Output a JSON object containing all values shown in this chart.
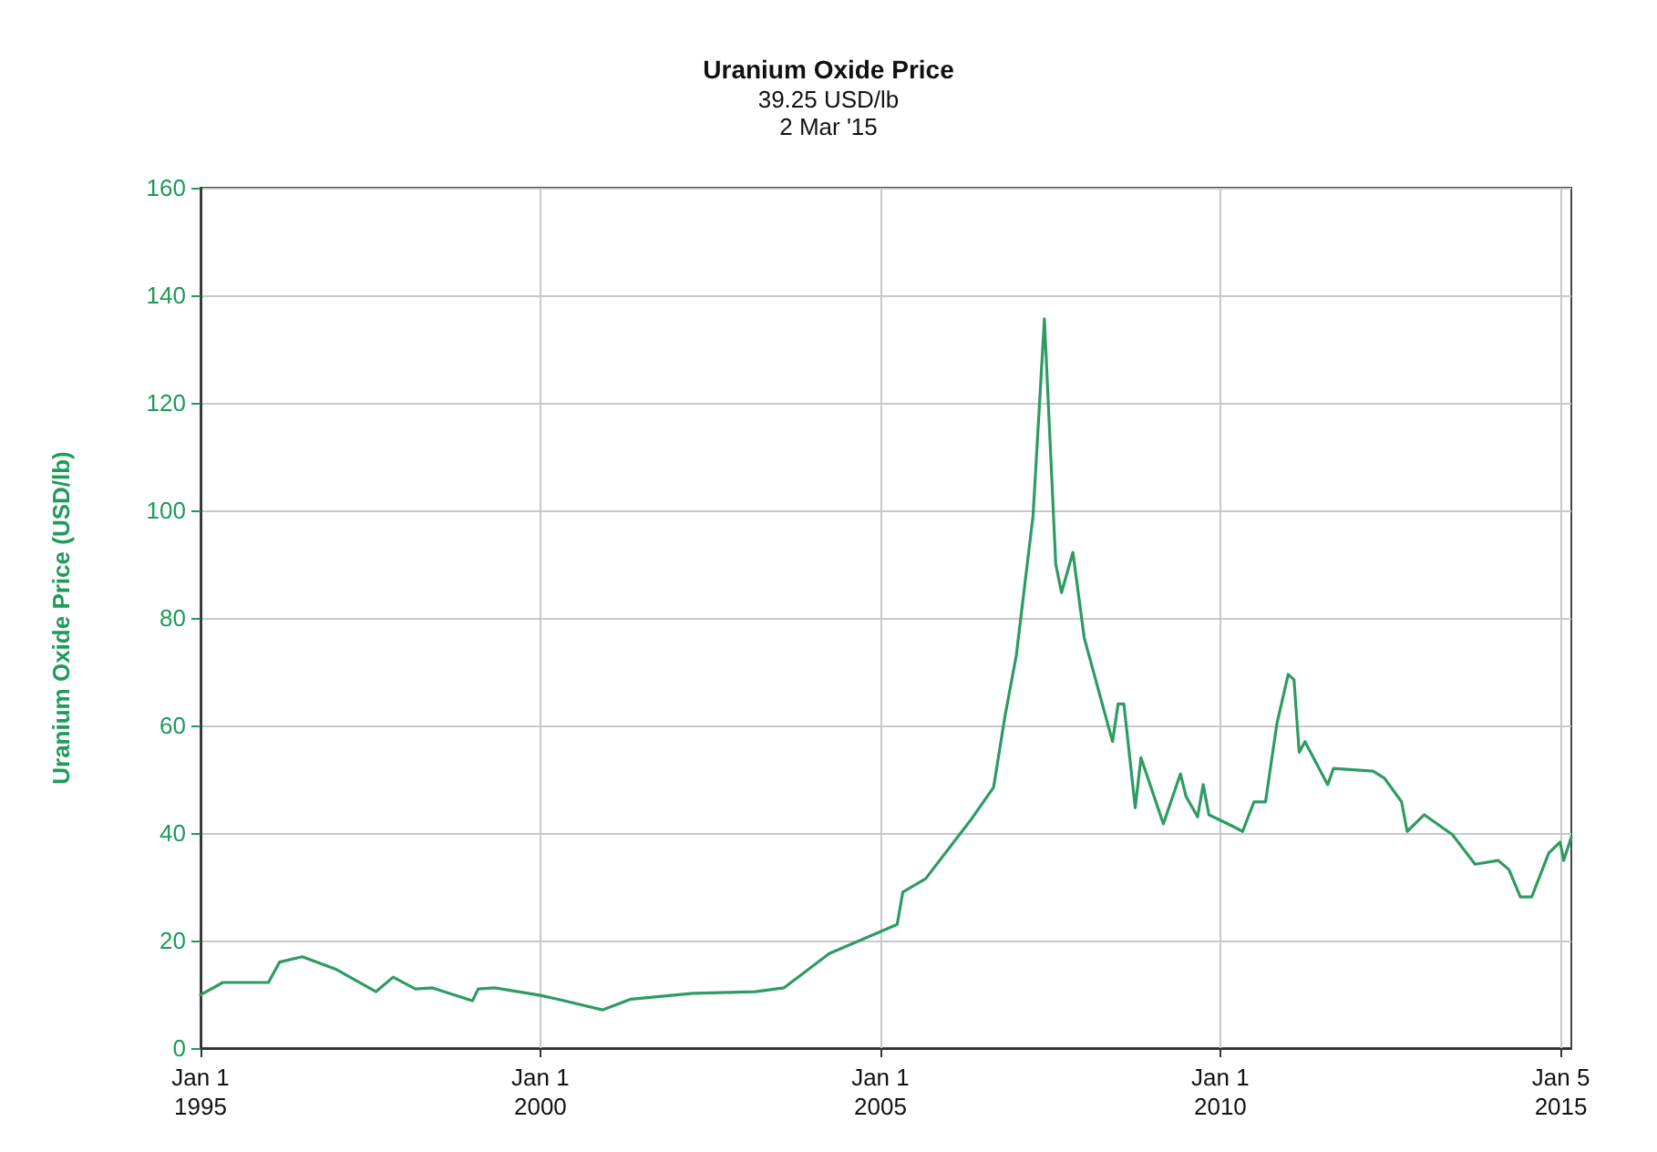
{
  "chart_data": {
    "type": "line",
    "title": "Uranium Oxide Price",
    "subtitle": "39.25 USD/lb\n2 Mar '15",
    "ylabel": "Uranium Oxide Price (USD/lb)",
    "x": [
      "1995-01",
      "1995-05",
      "1996-01",
      "1996-03",
      "1996-07",
      "1997-01",
      "1997-08",
      "1997-11",
      "1998-03",
      "1998-06",
      "1999-01",
      "1999-02",
      "1999-05",
      "2000-01",
      "2000-04",
      "2000-12",
      "2001-05",
      "2002-04",
      "2003-03",
      "2003-08",
      "2004-04",
      "2004-10",
      "2005-04",
      "2005-05",
      "2005-09",
      "2006-05",
      "2006-09",
      "2006-11",
      "2007-01",
      "2007-04",
      "2007-06",
      "2007-08",
      "2007-09",
      "2007-11",
      "2008-01",
      "2008-06",
      "2008-07",
      "2008-08",
      "2008-10",
      "2008-11",
      "2009-03",
      "2009-06",
      "2009-07",
      "2009-09",
      "2009-10",
      "2009-11",
      "2010-03",
      "2010-05",
      "2010-07",
      "2010-09",
      "2010-11",
      "2011-01",
      "2011-02",
      "2011-03",
      "2011-04",
      "2011-08",
      "2011-09",
      "2012-04",
      "2012-06",
      "2012-09",
      "2012-10",
      "2013-01",
      "2013-06",
      "2013-10",
      "2014-02",
      "2014-04",
      "2014-06",
      "2014-08",
      "2014-11",
      "2015-01",
      "2015-01-20",
      "2015-03-02"
    ],
    "series": [
      {
        "color": "#2e9b62",
        "values": [
          9.9,
          12.2,
          12.2,
          16,
          17,
          14.6,
          10.5,
          13.2,
          11,
          11.2,
          8.8,
          11,
          11.2,
          9.8,
          9.1,
          7.1,
          9.1,
          10.2,
          10.5,
          11.2,
          17.6,
          20.3,
          23,
          29,
          31.5,
          42.4,
          48.5,
          61.7,
          73,
          99,
          135.6,
          90,
          84.7,
          92.2,
          76.3,
          57,
          64,
          64,
          44.7,
          54,
          41.7,
          51,
          46.8,
          43,
          49,
          43.4,
          41.4,
          40.3,
          45.8,
          45.8,
          60.3,
          69.5,
          68.5,
          55,
          57,
          49,
          52,
          51.5,
          50.2,
          45.8,
          40.3,
          43.4,
          39.7,
          34.2,
          34.9,
          33.2,
          28.1,
          28.1,
          36.3,
          38.3,
          34.9,
          39.25
        ]
      }
    ],
    "xlim": [
      "1995-01-01",
      "2015-03-02"
    ],
    "xticks": [
      {
        "value": "1995-01-01",
        "label": "Jan 1\n1995"
      },
      {
        "value": "2000-01-01",
        "label": "Jan 1\n2000"
      },
      {
        "value": "2005-01-01",
        "label": "Jan 1\n2005"
      },
      {
        "value": "2010-01-01",
        "label": "Jan 1\n2010"
      },
      {
        "value": "2015-01-05",
        "label": "Jan 5\n2015"
      }
    ],
    "ylim": [
      0,
      160
    ],
    "yticks": [
      0,
      20,
      40,
      60,
      80,
      100,
      120,
      140,
      160
    ],
    "grid": true,
    "marker": "none",
    "line_style": "solid"
  }
}
